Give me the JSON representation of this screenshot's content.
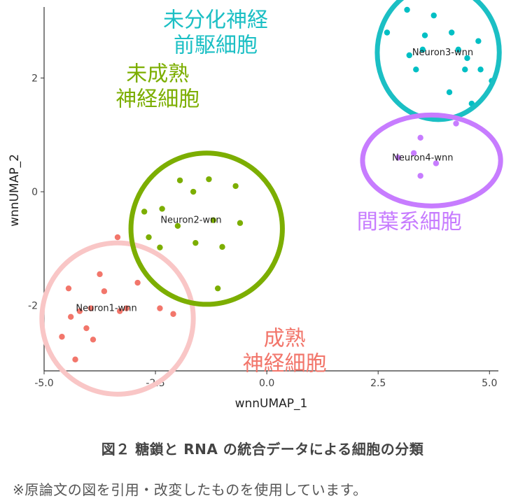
{
  "chart_data": {
    "type": "scatter",
    "xlabel": "wnnUMAP_1",
    "ylabel": "wnnUMAP_2",
    "xlim": [
      -5.0,
      5.2
    ],
    "ylim": [
      -3.15,
      3.2
    ],
    "x_ticks": [
      "-5.0",
      "-2.5",
      "0.0",
      "2.5",
      "5.0"
    ],
    "x_tick_values": [
      -5.0,
      -2.5,
      0.0,
      2.5,
      5.0
    ],
    "y_ticks": [
      "-2",
      "0",
      "2"
    ],
    "y_tick_values": [
      -2,
      0,
      2
    ],
    "grid": false,
    "series": [
      {
        "name": "Neuron1-wnn",
        "color": "#f2766b",
        "label": {
          "x": -3.6,
          "y": -2.1
        },
        "ellipse_color": "#f9c6c6",
        "ellipse": {
          "cx": -3.35,
          "cy": -2.23,
          "rx": 1.7,
          "ry": 1.33
        },
        "group_label": [
          "成熟",
          "神経細胞"
        ],
        "group_label_color": "#f2766b",
        "group_label_pos": {
          "x": 0.4,
          "y": -2.7
        },
        "x": [
          -4.45,
          -4.4,
          -4.6,
          -4.2,
          -4.05,
          -3.75,
          -3.65,
          -3.35,
          -3.15,
          -3.3,
          -2.9,
          -2.4,
          -2.1,
          -3.9,
          -3.95,
          -4.3
        ],
        "y": [
          -1.7,
          -2.2,
          -2.55,
          -2.1,
          -2.4,
          -1.45,
          -1.75,
          -0.8,
          -2.05,
          -2.1,
          -1.6,
          -2.05,
          -2.15,
          -2.6,
          -2.05,
          -2.95
        ]
      },
      {
        "name": "Neuron2-wnn",
        "color": "#7cae00",
        "label": {
          "x": -1.7,
          "y": -0.55
        },
        "ellipse_color": "#7cae00",
        "ellipse": {
          "cx": -1.35,
          "cy": -0.65,
          "rx": 1.7,
          "ry": 1.33
        },
        "group_label": [
          "未成熟",
          "神経細胞"
        ],
        "group_label_color": "#7cae00",
        "group_label_pos": {
          "x": -2.45,
          "y": 1.95
        },
        "x": [
          -1.95,
          -1.65,
          -1.3,
          -0.7,
          -2.75,
          -2.35,
          -2.0,
          -1.2,
          -1.6,
          -1.0,
          -2.4,
          -2.65,
          -0.6,
          -1.1
        ],
        "y": [
          0.2,
          0.0,
          0.22,
          0.1,
          -0.35,
          -0.3,
          -0.6,
          -0.5,
          -0.9,
          -0.97,
          -0.98,
          -0.8,
          -0.55,
          -1.7
        ]
      },
      {
        "name": "Neuron3-wnn",
        "color": "#00bfc4",
        "label": {
          "x": 3.95,
          "y": 2.4
        },
        "ellipse_color": "#1bbfc4",
        "ellipse": {
          "cx": 3.85,
          "cy": 2.45,
          "rx": 1.37,
          "ry": 1.18
        },
        "group_label": [
          "未分化神経",
          "前駆細胞"
        ],
        "group_label_color": "#1bbfc4",
        "group_label_pos": {
          "x": -1.15,
          "y": 2.9
        },
        "x": [
          3.15,
          3.2,
          2.7,
          3.55,
          3.75,
          4.15,
          4.3,
          4.5,
          4.75,
          4.8,
          4.1,
          3.35,
          3.5,
          4.6,
          5.05,
          4.45
        ],
        "y": [
          3.2,
          2.4,
          2.8,
          2.75,
          3.1,
          2.8,
          2.5,
          2.35,
          2.65,
          2.15,
          1.75,
          2.15,
          2.5,
          1.55,
          1.95,
          2.15
        ]
      },
      {
        "name": "Neuron4-wnn",
        "color": "#c77cff",
        "label": {
          "x": 3.5,
          "y": 0.55
        },
        "ellipse_color": "#c77cff",
        "ellipse": {
          "cx": 3.7,
          "cy": 0.55,
          "rx": 1.55,
          "ry": 0.8
        },
        "group_label": [
          "間葉系細胞"
        ],
        "group_label_color": "#c77cff",
        "group_label_pos": {
          "x": 3.2,
          "y": -0.65
        },
        "x": [
          3.45,
          3.3,
          2.95,
          3.8,
          3.45,
          4.25
        ],
        "y": [
          0.95,
          0.68,
          0.6,
          0.5,
          0.28,
          1.2
        ]
      }
    ]
  },
  "caption": "図２ 糖鎖と RNA の統合データによる細胞の分類",
  "note": "※原論文の図を引用・改変したものを使用しています。"
}
